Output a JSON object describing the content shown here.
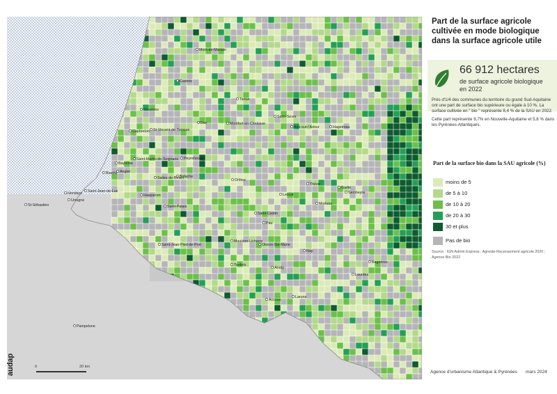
{
  "title": "Part de la surface agricole cultivée en mode biologique dans la surface agricole utile",
  "highlight": {
    "value": "66 912 hectares",
    "subtitle": "de surface agricole biologique en 2022"
  },
  "description": [
    "Près d'1/4 des communes du territoire du grand Sud-Aquitaine ont une part de surface bio supérieure ou égale à 10 %. La surface cultivée en \" bio \" représente 8,4 % de la SAU en 2022.",
    "Cette part représente 9,7% en Nouvelle-Aquitaine et 5,8 % dans les Pyrénées-Atlantiques."
  ],
  "legend": {
    "title": "Part de la surface bio dans la SAU agricole (%)",
    "items": [
      {
        "label": "moins de 5",
        "color": "#dceab9"
      },
      {
        "label": "de 5 à 10",
        "color": "#b3d98b"
      },
      {
        "label": "de 10 à 20",
        "color": "#6cc04a"
      },
      {
        "label": "de 20 à 30",
        "color": "#23a055"
      },
      {
        "label": "30 et plus",
        "color": "#0d5b2f"
      },
      {
        "label": "Pas de bio",
        "color": "#b5b5b8"
      }
    ]
  },
  "source": "Source : IGN Admin Express ; Agreste-Recensement agricole 2020 ; Agence Bio 2022",
  "footer": {
    "org": "Agence d'urbanisme Atlantique & Pyrénées",
    "date": "mars 2024"
  },
  "logo": "audap",
  "scale": {
    "start": "0",
    "end": "20 km"
  },
  "colors": {
    "ocean": "#dde3ee",
    "no_data": "#c8c8c8"
  },
  "towns": [
    "Mont-de-Marsan",
    "Castets",
    "Soustons",
    "Tartas",
    "Saint-Sever",
    "Dax",
    "Montfort-en-Chalosse",
    "Aire-sur-l'Adour",
    "Capbreton",
    "St-Vincent-de-Tyrosse",
    "Hagetmau",
    "Saint-Martin-de-Seignanx",
    "Bayonne",
    "Peyrehorade",
    "Anglet",
    "Biarritz",
    "Orthez",
    "Garlin",
    "Bidache",
    "Salies-de-Béarn",
    "Hendaye",
    "Saint-Jean-de-Luz",
    "Urrugne",
    "Hasparren",
    "Thèze",
    "Sembeyre",
    "Lescar",
    "Morlaàs",
    "Saint-Palais",
    "Saint-Castin",
    "Pau",
    "Nay",
    "Mauléon-Licharre",
    "Oloron-Ste-Marie",
    "Saint-Jean-Pied-de-Port",
    "Tardets",
    "Arudy",
    "Lourdes",
    "Bagnères",
    "Accous",
    "Laruns",
    "St-Sébastien",
    "Pampelune"
  ]
}
